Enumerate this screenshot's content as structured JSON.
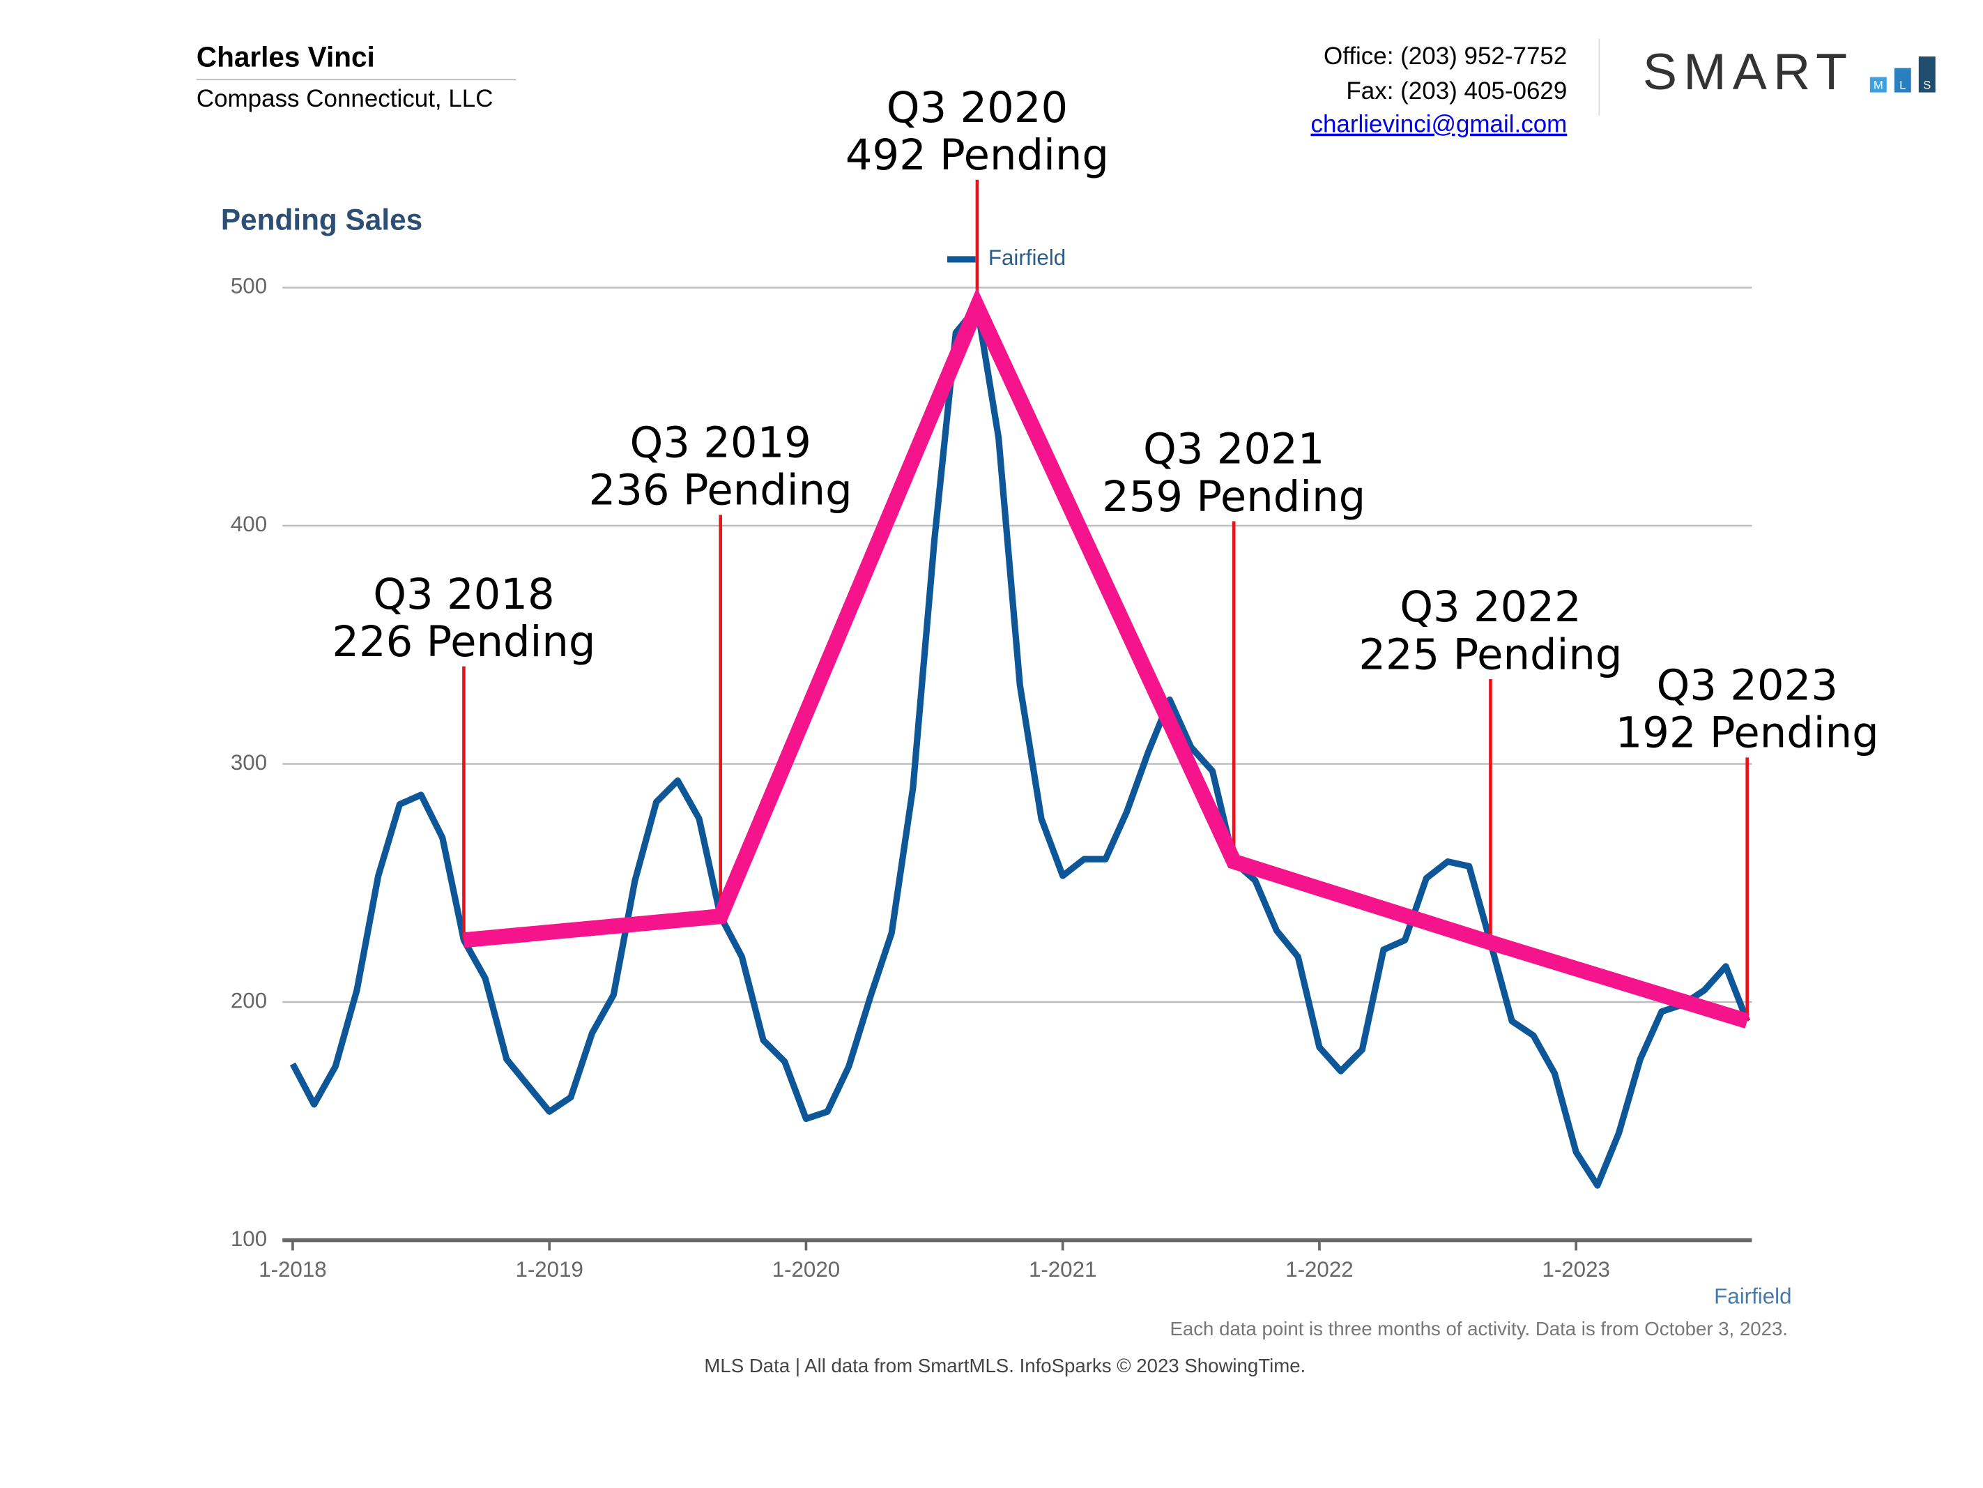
{
  "header": {
    "name": "Charles Vinci",
    "company": "Compass Connecticut, LLC",
    "office": "Office: (203) 952-7752",
    "fax": "Fax: (203) 405-0629",
    "email": "charlievinci@gmail.com"
  },
  "logo": {
    "text": "SMART",
    "sub": [
      "M",
      "L",
      "S"
    ]
  },
  "chart_data": {
    "type": "line",
    "title": "Pending Sales",
    "x": [
      "1-2018",
      "2-2018",
      "3-2018",
      "4-2018",
      "5-2018",
      "6-2018",
      "7-2018",
      "8-2018",
      "9-2018",
      "10-2018",
      "11-2018",
      "12-2018",
      "1-2019",
      "2-2019",
      "3-2019",
      "4-2019",
      "5-2019",
      "6-2019",
      "7-2019",
      "8-2019",
      "9-2019",
      "10-2019",
      "11-2019",
      "12-2019",
      "1-2020",
      "2-2020",
      "3-2020",
      "4-2020",
      "5-2020",
      "6-2020",
      "7-2020",
      "8-2020",
      "9-2020",
      "10-2020",
      "11-2020",
      "12-2020",
      "1-2021",
      "2-2021",
      "3-2021",
      "4-2021",
      "5-2021",
      "6-2021",
      "7-2021",
      "8-2021",
      "9-2021",
      "10-2021",
      "11-2021",
      "12-2021",
      "1-2022",
      "2-2022",
      "3-2022",
      "4-2022",
      "5-2022",
      "6-2022",
      "7-2022",
      "8-2022",
      "9-2022",
      "10-2022",
      "11-2022",
      "12-2022",
      "1-2023",
      "2-2023",
      "3-2023",
      "4-2023",
      "5-2023",
      "6-2023",
      "7-2023",
      "8-2023",
      "9-2023"
    ],
    "series": [
      {
        "name": "Fairfield",
        "color": "#0d5799",
        "values": [
          174,
          157,
          173,
          205,
          253,
          283,
          287,
          269,
          226,
          210,
          176,
          165,
          154,
          160,
          187,
          203,
          251,
          284,
          293,
          277,
          236,
          219,
          184,
          175,
          151,
          154,
          173,
          202,
          229,
          290,
          394,
          481,
          492,
          437,
          333,
          277,
          253,
          260,
          260,
          280,
          305,
          327,
          307,
          297,
          259,
          251,
          230,
          219,
          181,
          171,
          180,
          222,
          226,
          252,
          259,
          257,
          225,
          192,
          186,
          170,
          137,
          123,
          145,
          176,
          196,
          199,
          205,
          215,
          192
        ]
      }
    ],
    "ylim": [
      100,
      500
    ],
    "yticks": [
      100,
      200,
      300,
      400,
      500
    ],
    "xticks": [
      "1-2018",
      "1-2019",
      "1-2020",
      "1-2021",
      "1-2022",
      "1-2023"
    ],
    "grid": true,
    "legend": "top",
    "annotation_color": "#f5148c",
    "annotation_line_color": "#e8141c",
    "annotations": [
      {
        "x": "9-2018",
        "title": "Q3 2018",
        "text": "226 Pending",
        "value": 226
      },
      {
        "x": "9-2019",
        "title": "Q3 2019",
        "text": "236 Pending",
        "value": 236
      },
      {
        "x": "9-2020",
        "title": "Q3 2020",
        "text": "492 Pending",
        "value": 492
      },
      {
        "x": "9-2021",
        "title": "Q3 2021",
        "text": "259 Pending",
        "value": 259
      },
      {
        "x": "9-2022",
        "title": "Q3 2022",
        "text": "225 Pending",
        "value": 225
      },
      {
        "x": "9-2023",
        "title": "Q3 2023",
        "text": "192 Pending",
        "value": 192
      }
    ]
  },
  "footer": {
    "note": "Each data point is three months of activity. Data is from October 3, 2023.",
    "credit": "MLS Data | All data from SmartMLS. InfoSparks © 2023 ShowingTime."
  }
}
